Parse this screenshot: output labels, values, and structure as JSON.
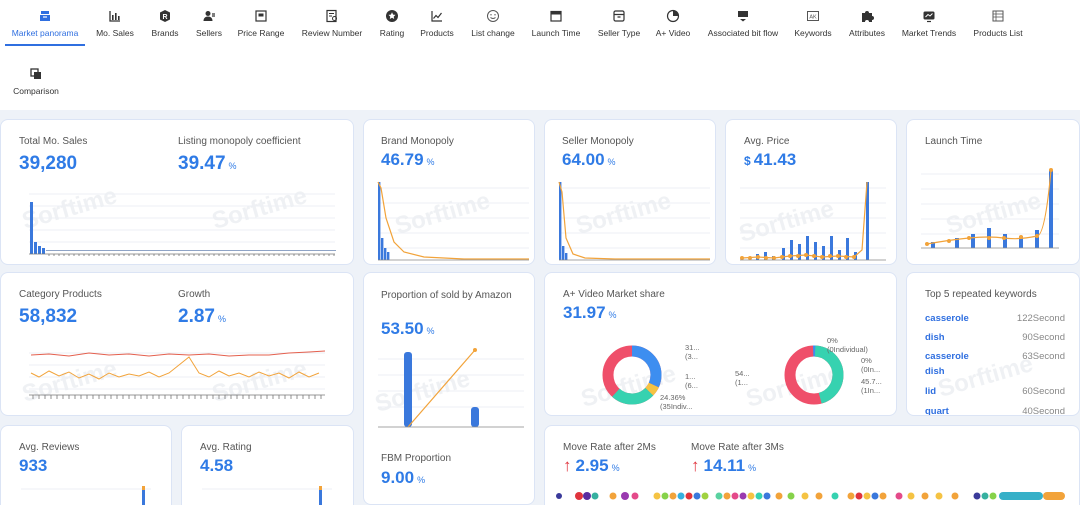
{
  "nav": {
    "items": [
      {
        "label": "Market panorama",
        "icon": "panorama-icon"
      },
      {
        "label": "Mo. Sales",
        "icon": "bar-chart-icon"
      },
      {
        "label": "Brands",
        "icon": "brand-badge-icon"
      },
      {
        "label": "Sellers",
        "icon": "seller-icon"
      },
      {
        "label": "Price Range",
        "icon": "price-icon"
      },
      {
        "label": "Review Number",
        "icon": "review-icon"
      },
      {
        "label": "Rating",
        "icon": "star-icon"
      },
      {
        "label": "Products",
        "icon": "trend-line-icon"
      },
      {
        "label": "List change",
        "icon": "smile-icon"
      },
      {
        "label": "Launch Time",
        "icon": "calendar-icon"
      },
      {
        "label": "Seller Type",
        "icon": "box-icon"
      },
      {
        "label": "A+ Video",
        "icon": "video-icon"
      },
      {
        "label": "Associated bit flow",
        "icon": "flow-icon"
      },
      {
        "label": "Keywords",
        "icon": "keyword-icon"
      },
      {
        "label": "Attributes",
        "icon": "puzzle-icon"
      },
      {
        "label": "Market Trends",
        "icon": "trends-icon"
      },
      {
        "label": "Products List",
        "icon": "list-icon"
      },
      {
        "label": "Comparison",
        "icon": "copy-icon"
      }
    ]
  },
  "watermark": "Sorftime",
  "cards": {
    "sales": {
      "title": "Total Mo. Sales",
      "value": "39,280"
    },
    "listing": {
      "title": "Listing monopoly coefficient",
      "value": "39.47",
      "unit": "%"
    },
    "brand": {
      "title": "Brand Monopoly",
      "value": "46.79",
      "unit": "%"
    },
    "seller": {
      "title": "Seller Monopoly",
      "value": "64.00",
      "unit": "%"
    },
    "price": {
      "title": "Avg. Price",
      "currency": "$",
      "value": "41.43"
    },
    "launch": {
      "title": "Launch Time"
    },
    "category": {
      "title": "Category Products",
      "value": "58,832"
    },
    "growth": {
      "title": "Growth",
      "value": "2.87",
      "unit": "%"
    },
    "amazon": {
      "title": "Proportion of sold by Amazon",
      "value": "53.50",
      "unit": "%"
    },
    "fbm": {
      "title": "FBM Proportion",
      "value": "9.00",
      "unit": "%"
    },
    "aplus": {
      "title": "A+ Video Market share",
      "value": "31.97",
      "unit": "%",
      "donut1_labels": [
        "31...",
        "(3...",
        "1...",
        "(6...",
        "24.36%",
        "(35Indiv..."
      ],
      "donut2_labels": [
        "0%",
        "(0Individual)",
        "0%",
        "(0In...",
        "45.7...",
        "(1In...",
        "54...",
        "(1..."
      ]
    },
    "keywords": {
      "title": "Top 5 repeated keywords",
      "items": [
        {
          "keyword": "casserole",
          "count": "122Second"
        },
        {
          "keyword": "dish",
          "count": "90Second"
        },
        {
          "keyword": "casserole dish",
          "count": "63Second"
        },
        {
          "keyword": "lid",
          "count": "60Second"
        },
        {
          "keyword": "quart",
          "count": "40Second"
        }
      ]
    },
    "reviews": {
      "title": "Avg. Reviews",
      "value": "933"
    },
    "rating": {
      "title": "Avg. Rating",
      "value": "4.58"
    },
    "move2": {
      "title": "Move Rate after 2Ms",
      "value": "2.95",
      "unit": "%"
    },
    "move3": {
      "title": "Move Rate after 3Ms",
      "value": "14.11",
      "unit": "%"
    }
  },
  "colors": {
    "accent": "#2f7be6",
    "bar": "#3a78dc",
    "line_orange": "#f2a33a",
    "line_red": "#e4604e",
    "donut_blue": "#3d8ef0",
    "donut_teal": "#36d2b0",
    "donut_red": "#ef4f6a",
    "donut_yellow": "#f5c343",
    "arrow_red": "#e0343d"
  }
}
